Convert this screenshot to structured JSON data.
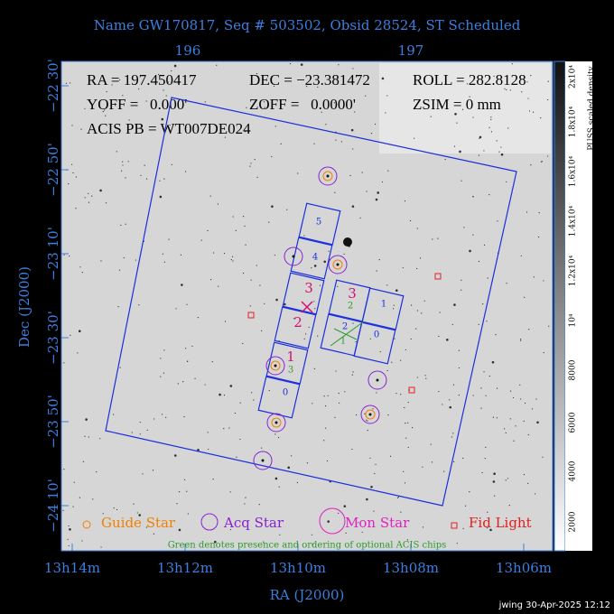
{
  "title": "Name GW170817, Seq # 503502, Obsid 28524, ST Scheduled",
  "top_ticks": [
    "196",
    "197"
  ],
  "left_ticks": [
    "−22 30'",
    "−22 50'",
    "−23 10'",
    "−23 30'",
    "−23 50'",
    "−24 10'"
  ],
  "bottom_ticks": [
    "13h14m",
    "13h12m",
    "13h10m",
    "13h08m",
    "13h06m"
  ],
  "x_label": "RA (J2000)",
  "y_label": "Dec (J2000)",
  "colorbar": {
    "label": "PUSS scaled density",
    "ticks": [
      "2000",
      "4000",
      "6000",
      "8000",
      "10⁴",
      "1.2x10⁴",
      "1.4x10⁴",
      "1.6x10⁴",
      "1.8x10⁴",
      "2x10⁴"
    ]
  },
  "header": {
    "ra": "RA = 197.450417",
    "dec": "DEC = −23.381472",
    "roll": "ROLL = 282.8128",
    "yoff": "YOFF =   0.000'",
    "zoff": "ZOFF =   0.0000'",
    "zsim": "ZSIM = 0 mm",
    "acis_pb": "ACIS PB = WT007DE024"
  },
  "s_chips": [
    "5",
    "4",
    "3",
    "2",
    "1",
    "3",
    "0"
  ],
  "i_chips": [
    "3",
    "2",
    "1",
    "2",
    "0",
    "1"
  ],
  "legend": [
    "Guide Star",
    "Acq Star",
    "Mon Star",
    "Fid Light"
  ],
  "note": "Green denotes presence and ordering of optional ACIS chips",
  "footer": "jwing 30-Apr-2025 12:12"
}
